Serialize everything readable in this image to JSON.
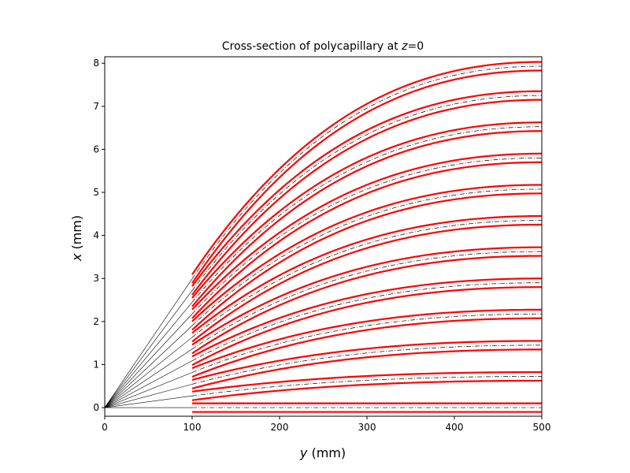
{
  "chart_data": {
    "type": "line",
    "title_prefix": "Cross-section of polycapillary at ",
    "title_var": "z",
    "title_suffix": "=0",
    "xlabel_var": "y",
    "xlabel_unit": " (mm)",
    "ylabel_var": "x",
    "ylabel_unit": " (mm)",
    "xlim": [
      0,
      500
    ],
    "ylim": [
      -0.2,
      8.15
    ],
    "xticks": [
      0,
      100,
      200,
      300,
      400,
      500
    ],
    "yticks": [
      0,
      1,
      2,
      3,
      4,
      5,
      6,
      7,
      8
    ],
    "grid": false,
    "source_point": [
      0,
      0
    ],
    "channel_start_y": 100,
    "channel_end_y": 500,
    "channels": [
      {
        "center_start": 0.0,
        "center_end": 0.0,
        "wall_half_width": 0.1
      },
      {
        "center_start": 0.272,
        "center_end": 0.725,
        "wall_half_width": 0.1
      },
      {
        "center_start": 0.544,
        "center_end": 1.45,
        "wall_half_width": 0.1
      },
      {
        "center_start": 0.816,
        "center_end": 2.175,
        "wall_half_width": 0.1
      },
      {
        "center_start": 1.088,
        "center_end": 2.9,
        "wall_half_width": 0.1
      },
      {
        "center_start": 1.36,
        "center_end": 3.625,
        "wall_half_width": 0.1
      },
      {
        "center_start": 1.632,
        "center_end": 4.35,
        "wall_half_width": 0.1
      },
      {
        "center_start": 1.904,
        "center_end": 5.075,
        "wall_half_width": 0.1
      },
      {
        "center_start": 2.176,
        "center_end": 5.8,
        "wall_half_width": 0.1
      },
      {
        "center_start": 2.448,
        "center_end": 6.525,
        "wall_half_width": 0.1
      },
      {
        "center_start": 2.72,
        "center_end": 7.25,
        "wall_half_width": 0.1
      },
      {
        "center_start": 2.992,
        "center_end": 7.93,
        "wall_half_width": 0.1
      }
    ],
    "colors": {
      "wall": "#ff0000",
      "center": "#000000",
      "ray": "#000000"
    }
  }
}
